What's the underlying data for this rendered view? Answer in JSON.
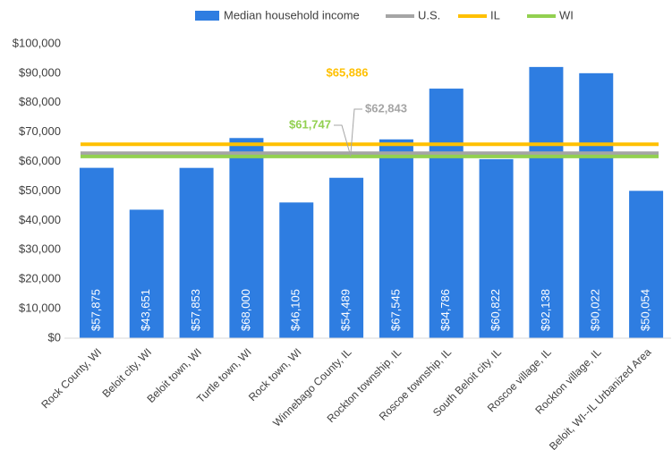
{
  "chart_data": {
    "type": "bar",
    "categories": [
      "Rock County, WI",
      "Beloit city, WI",
      "Beloit town, WI",
      "Turtle town, WI",
      "Rock town, WI",
      "Winnebago County, IL",
      "Rockton township, IL",
      "Roscoe township, IL",
      "South Beloit city, IL",
      "Roscoe village, IL",
      "Rockton village, IL",
      "Beloit, WI--IL Urbanized Area"
    ],
    "series": [
      {
        "name": "Median household income",
        "color": "#2e7de1",
        "values": [
          57875,
          43651,
          57853,
          68000,
          46105,
          54489,
          67545,
          84786,
          60822,
          92138,
          90022,
          50054
        ],
        "value_labels": [
          "$57,875",
          "$43,651",
          "$57,853",
          "$68,000",
          "$46,105",
          "$54,489",
          "$67,545",
          "$84,786",
          "$60,822",
          "$92,138",
          "$90,022",
          "$50,054"
        ]
      }
    ],
    "reference_lines": [
      {
        "name": "U.S.",
        "color": "#a5a5a5",
        "value": 62843,
        "label": "$62,843"
      },
      {
        "name": "IL",
        "color": "#ffc000",
        "value": 65886,
        "label": "$65,886"
      },
      {
        "name": "WI",
        "color": "#92d050",
        "value": 61747,
        "label": "$61,747"
      }
    ],
    "ylim": [
      0,
      100000
    ],
    "yticks": [
      {
        "value": 0,
        "label": "$0"
      },
      {
        "value": 10000,
        "label": "$10,000"
      },
      {
        "value": 20000,
        "label": "$20,000"
      },
      {
        "value": 30000,
        "label": "$30,000"
      },
      {
        "value": 40000,
        "label": "$40,000"
      },
      {
        "value": 50000,
        "label": "$50,000"
      },
      {
        "value": 60000,
        "label": "$60,000"
      },
      {
        "value": 70000,
        "label": "$70,000"
      },
      {
        "value": 80000,
        "label": "$80,000"
      },
      {
        "value": 90000,
        "label": "$90,000"
      },
      {
        "value": 100000,
        "label": "$100,000"
      }
    ],
    "grid": false
  }
}
